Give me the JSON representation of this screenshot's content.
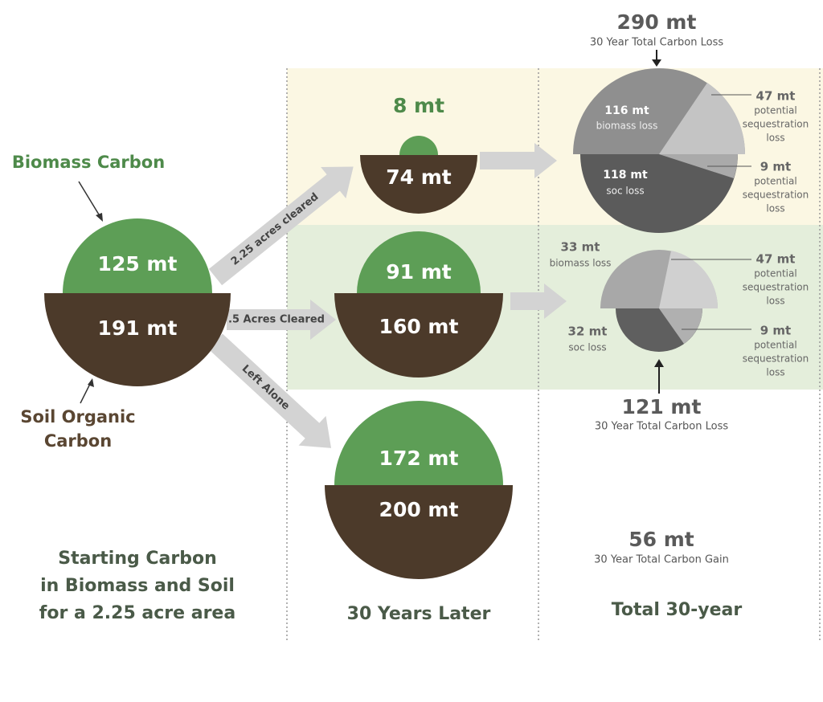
{
  "labels": {
    "biomass_carbon": "Biomass Carbon",
    "soil_organic_carbon": [
      "Soil Organic",
      "Carbon"
    ]
  },
  "start": {
    "biomass": "125 mt",
    "soil": "191 mt"
  },
  "paths": [
    "2.25 acres cleared",
    ".5 Acres Cleared",
    "Left Alone"
  ],
  "later": [
    {
      "biomass": "8 mt",
      "soil": "74 mt"
    },
    {
      "biomass": "91 mt",
      "soil": "160 mt"
    },
    {
      "biomass": "172 mt",
      "soil": "200 mt"
    }
  ],
  "totals": [
    {
      "value": "290 mt",
      "label": "30 Year Total Carbon Loss",
      "breakdown": [
        {
          "value": "116 mt",
          "label": "biomass loss"
        },
        {
          "value": "47 mt",
          "label": [
            "potential",
            "sequestration",
            "loss"
          ]
        },
        {
          "value": "118 mt",
          "label": "soc loss"
        },
        {
          "value": "9 mt",
          "label": [
            "potential",
            "sequestration",
            "loss"
          ]
        }
      ]
    },
    {
      "value": "121 mt",
      "label": "30 Year Total Carbon Loss",
      "breakdown": [
        {
          "value": "33 mt",
          "label": "biomass loss"
        },
        {
          "value": "47 mt",
          "label": [
            "potential",
            "sequestration",
            "loss"
          ]
        },
        {
          "value": "32 mt",
          "label": "soc loss"
        },
        {
          "value": "9 mt",
          "label": [
            "potential",
            "sequestration",
            "loss"
          ]
        }
      ]
    },
    {
      "value": "56 mt",
      "label": "30 Year Total Carbon Gain"
    }
  ],
  "captions": {
    "start": [
      "Starting Carbon",
      "in Biomass and Soil",
      "for a 2.25 acre area"
    ],
    "later": "30 Years Later",
    "total": "Total 30-year"
  }
}
